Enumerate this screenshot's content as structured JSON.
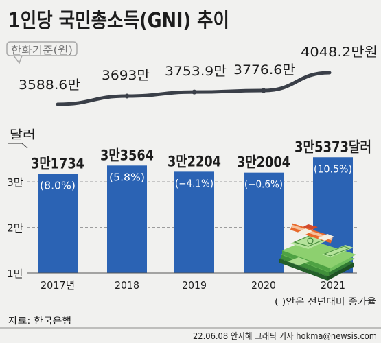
{
  "title": "1인당 국민총소득(GNI) 추이",
  "footer": {
    "source": "자료: 한국은행",
    "credit": "22.06.08 안지혜 그래픽 기자 hokma@newsis.com"
  },
  "colors": {
    "bar": "#2b63b4",
    "line": "#3a3f48",
    "text": "#1c1c1c",
    "background": "#f1f1ef",
    "callout": "#a9a9a9"
  },
  "illustration": "stack-of-money",
  "chart_data": [
    {
      "type": "line",
      "unit_label": "한화기준(원)",
      "categories": [
        "2017년",
        "2018",
        "2019",
        "2020",
        "2021"
      ],
      "values": [
        3588.6,
        3693,
        3753.9,
        3776.6,
        4048.2
      ],
      "data_labels": [
        "3588.6만",
        "3693만",
        "3753.9만",
        "3776.6만",
        "4048.2만원"
      ]
    },
    {
      "type": "bar",
      "unit_label": "달러",
      "categories": [
        "2017년",
        "2018",
        "2019",
        "2020",
        "2021"
      ],
      "values": [
        31734,
        33564,
        32204,
        32004,
        35373
      ],
      "data_labels": [
        "3만1734",
        "3만3564",
        "3만2204",
        "3만2004",
        "3만5373달러"
      ],
      "growth_rates": [
        8.0,
        5.8,
        -4.1,
        -0.6,
        10.5
      ],
      "growth_labels": [
        "(8.0%)",
        "(5.8%)",
        "(−4.1%)",
        "(−0.6%)",
        "(10.5%)"
      ],
      "y_ticks": [
        {
          "value": 30000,
          "label": "3만"
        },
        {
          "value": 20000,
          "label": "2만"
        },
        {
          "value": 10000,
          "label": "1만"
        }
      ],
      "ylim": [
        10000,
        35373
      ],
      "grid": true,
      "note": "( )안은 전년대비 증가율"
    }
  ]
}
